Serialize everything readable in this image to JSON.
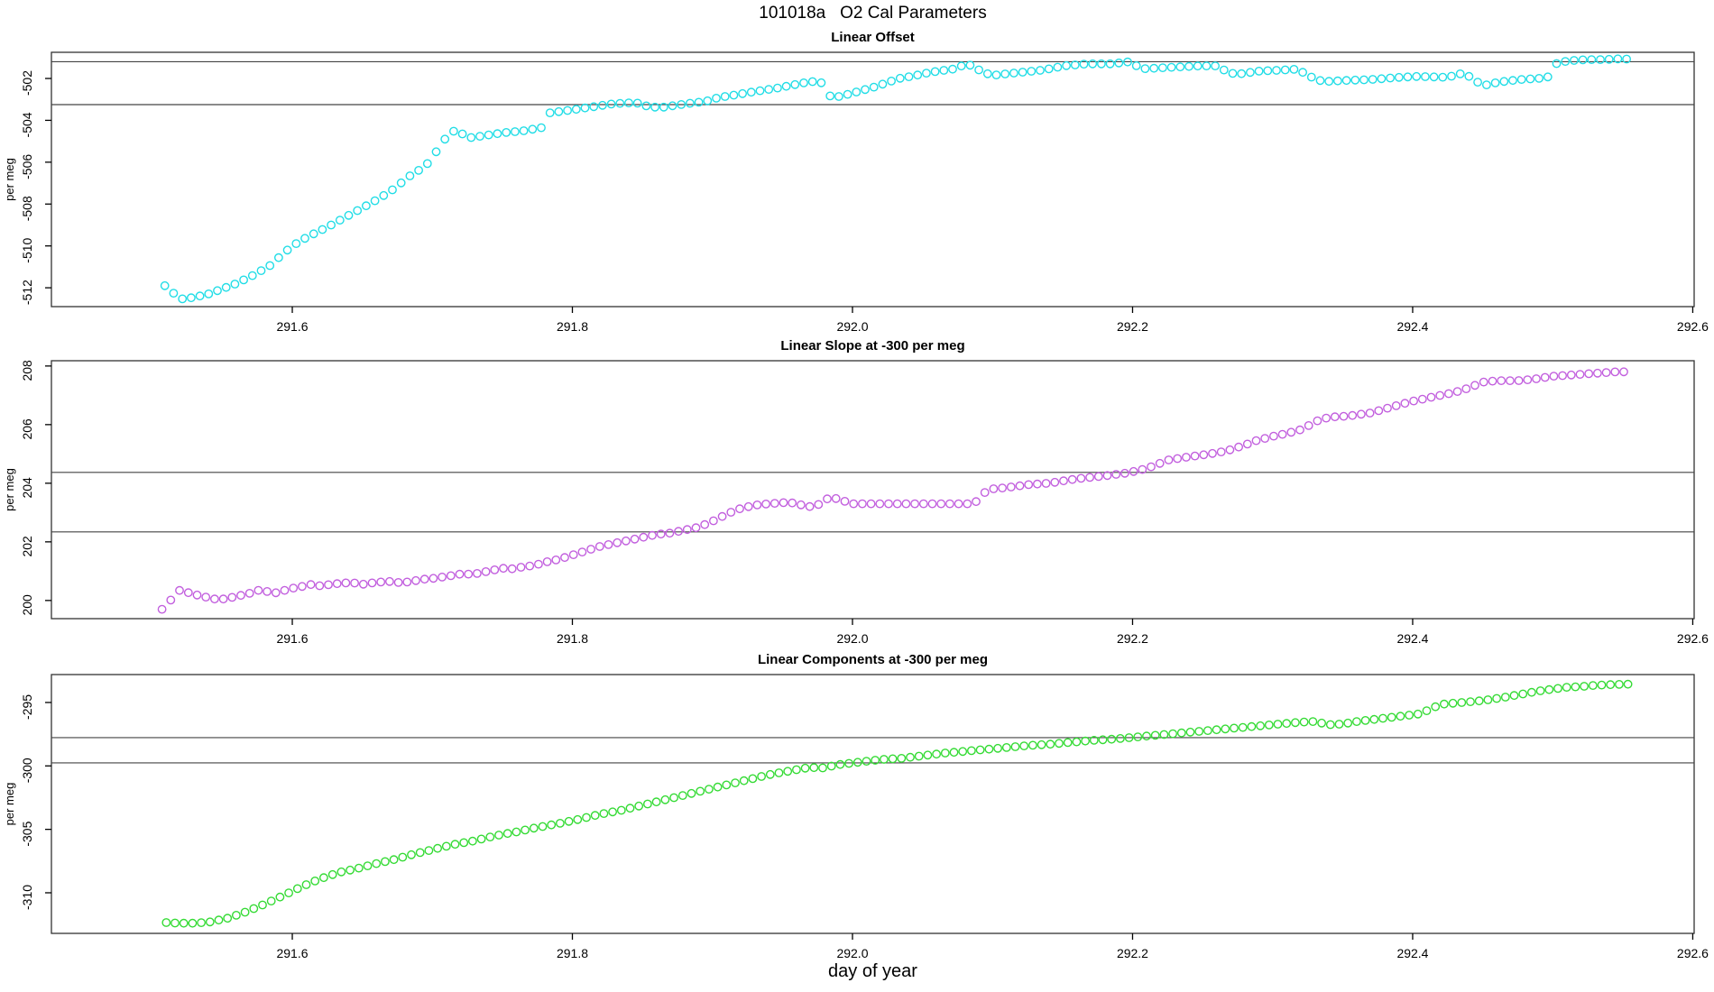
{
  "title": "101018a   O2 Cal Parameters",
  "xlabel": "day of year",
  "chart_data": [
    {
      "type": "scatter",
      "title": "Linear Offset",
      "ylabel": "per meg",
      "marker": "open-circle",
      "color": "#21DDE6",
      "xlim": [
        291.428,
        292.601
      ],
      "ylim": [
        -512.9,
        -500.75
      ],
      "x_ticks": [
        291.6,
        291.8,
        292.0,
        292.2,
        292.4,
        292.6
      ],
      "y_ticks": [
        -512,
        -510,
        -508,
        -506,
        -504,
        -502
      ],
      "ref_lines": [
        -501.2,
        -503.25
      ],
      "sample_step": 0.00625,
      "x_range": [
        291.509,
        292.5565
      ],
      "anchors": [
        [
          291.509,
          -511.9
        ],
        [
          291.516,
          -512.3
        ],
        [
          291.522,
          -512.55
        ],
        [
          291.53,
          -512.45
        ],
        [
          291.54,
          -512.3
        ],
        [
          291.55,
          -512.05
        ],
        [
          291.56,
          -511.8
        ],
        [
          291.572,
          -511.4
        ],
        [
          291.585,
          -510.9
        ],
        [
          291.592,
          -510.45
        ],
        [
          291.6,
          -510.0
        ],
        [
          291.61,
          -509.6
        ],
        [
          291.625,
          -509.1
        ],
        [
          291.64,
          -508.55
        ],
        [
          291.655,
          -508.0
        ],
        [
          291.67,
          -507.4
        ],
        [
          291.685,
          -506.6
        ],
        [
          291.695,
          -506.2
        ],
        [
          291.705,
          -505.3
        ],
        [
          291.712,
          -504.6
        ],
        [
          291.718,
          -504.45
        ],
        [
          291.725,
          -504.85
        ],
        [
          291.735,
          -504.75
        ],
        [
          291.75,
          -504.6
        ],
        [
          291.765,
          -504.5
        ],
        [
          291.778,
          -504.35
        ],
        [
          291.783,
          -503.65
        ],
        [
          291.8,
          -503.5
        ],
        [
          291.815,
          -503.35
        ],
        [
          291.83,
          -503.2
        ],
        [
          291.845,
          -503.15
        ],
        [
          291.852,
          -503.3
        ],
        [
          291.862,
          -503.4
        ],
        [
          291.872,
          -503.3
        ],
        [
          291.882,
          -503.2
        ],
        [
          291.895,
          -503.1
        ],
        [
          291.905,
          -502.9
        ],
        [
          291.915,
          -502.8
        ],
        [
          291.928,
          -502.65
        ],
        [
          291.947,
          -502.45
        ],
        [
          291.966,
          -502.2
        ],
        [
          291.977,
          -502.1
        ],
        [
          291.982,
          -502.8
        ],
        [
          291.988,
          -502.9
        ],
        [
          291.997,
          -502.75
        ],
        [
          292.016,
          -502.4
        ],
        [
          292.033,
          -502.0
        ],
        [
          292.042,
          -501.9
        ],
        [
          292.056,
          -501.7
        ],
        [
          292.072,
          -501.55
        ],
        [
          292.082,
          -501.3
        ],
        [
          292.088,
          -501.5
        ],
        [
          292.093,
          -501.7
        ],
        [
          292.1,
          -501.85
        ],
        [
          292.114,
          -501.75
        ],
        [
          292.136,
          -501.6
        ],
        [
          292.151,
          -501.4
        ],
        [
          292.168,
          -501.3
        ],
        [
          292.185,
          -501.3
        ],
        [
          292.198,
          -501.2
        ],
        [
          292.203,
          -501.4
        ],
        [
          292.21,
          -501.55
        ],
        [
          292.217,
          -501.5
        ],
        [
          292.233,
          -501.45
        ],
        [
          292.248,
          -501.4
        ],
        [
          292.262,
          -501.4
        ],
        [
          292.267,
          -501.7
        ],
        [
          292.275,
          -501.8
        ],
        [
          292.29,
          -501.65
        ],
        [
          292.306,
          -501.6
        ],
        [
          292.319,
          -501.55
        ],
        [
          292.323,
          -501.8
        ],
        [
          292.33,
          -502.0
        ],
        [
          292.336,
          -502.15
        ],
        [
          292.351,
          -502.1
        ],
        [
          292.37,
          -502.05
        ],
        [
          292.39,
          -501.95
        ],
        [
          292.404,
          -501.9
        ],
        [
          292.426,
          -501.95
        ],
        [
          292.432,
          -501.75
        ],
        [
          292.439,
          -501.85
        ],
        [
          292.445,
          -502.1
        ],
        [
          292.45,
          -502.35
        ],
        [
          292.456,
          -502.25
        ],
        [
          292.464,
          -502.15
        ],
        [
          292.477,
          -502.05
        ],
        [
          292.49,
          -502.0
        ],
        [
          292.499,
          -501.9
        ],
        [
          292.503,
          -501.25
        ],
        [
          292.512,
          -501.15
        ],
        [
          292.524,
          -501.1
        ],
        [
          292.537,
          -501.1
        ],
        [
          292.55,
          -501.05
        ],
        [
          292.5565,
          -501.1
        ]
      ]
    },
    {
      "type": "scatter",
      "title": "Linear Slope at -300 per meg",
      "ylabel": "per meg",
      "marker": "open-circle",
      "color": "#C25FDE",
      "xlim": [
        291.428,
        292.601
      ],
      "ylim": [
        199.38,
        208.18
      ],
      "x_ticks": [
        291.6,
        291.8,
        292.0,
        292.2,
        292.4,
        292.6
      ],
      "y_ticks": [
        200,
        202,
        204,
        206,
        208
      ],
      "ref_lines": [
        204.37,
        202.34
      ],
      "sample_step": 0.00625,
      "x_range": [
        291.507,
        292.5565
      ],
      "anchors": [
        [
          291.507,
          199.7
        ],
        [
          291.513,
          200.0
        ],
        [
          291.519,
          200.35
        ],
        [
          291.527,
          200.25
        ],
        [
          291.535,
          200.15
        ],
        [
          291.544,
          200.05
        ],
        [
          291.552,
          200.05
        ],
        [
          291.561,
          200.15
        ],
        [
          291.57,
          200.25
        ],
        [
          291.576,
          200.35
        ],
        [
          291.583,
          200.3
        ],
        [
          291.59,
          200.25
        ],
        [
          291.597,
          200.4
        ],
        [
          291.605,
          200.45
        ],
        [
          291.612,
          200.55
        ],
        [
          291.62,
          200.5
        ],
        [
          291.628,
          200.55
        ],
        [
          291.636,
          200.6
        ],
        [
          291.644,
          200.6
        ],
        [
          291.65,
          200.55
        ],
        [
          291.66,
          200.62
        ],
        [
          291.67,
          200.65
        ],
        [
          291.678,
          200.6
        ],
        [
          291.685,
          200.65
        ],
        [
          291.693,
          200.72
        ],
        [
          291.7,
          200.75
        ],
        [
          291.71,
          200.82
        ],
        [
          291.72,
          200.9
        ],
        [
          291.73,
          200.9
        ],
        [
          291.74,
          201.0
        ],
        [
          291.75,
          201.1
        ],
        [
          291.758,
          201.08
        ],
        [
          291.765,
          201.15
        ],
        [
          291.773,
          201.2
        ],
        [
          291.78,
          201.3
        ],
        [
          291.79,
          201.4
        ],
        [
          291.8,
          201.55
        ],
        [
          291.81,
          201.7
        ],
        [
          291.82,
          201.85
        ],
        [
          291.83,
          201.95
        ],
        [
          291.84,
          202.05
        ],
        [
          291.85,
          202.15
        ],
        [
          291.86,
          202.25
        ],
        [
          291.87,
          202.3
        ],
        [
          291.88,
          202.4
        ],
        [
          291.89,
          202.5
        ],
        [
          291.9,
          202.7
        ],
        [
          291.917,
          203.1
        ],
        [
          291.93,
          203.25
        ],
        [
          291.94,
          203.3
        ],
        [
          291.955,
          203.35
        ],
        [
          291.969,
          203.2
        ],
        [
          291.978,
          203.3
        ],
        [
          291.984,
          203.55
        ],
        [
          291.99,
          203.45
        ],
        [
          292.0,
          203.3
        ],
        [
          292.02,
          203.3
        ],
        [
          292.042,
          203.3
        ],
        [
          292.06,
          203.3
        ],
        [
          292.087,
          203.3
        ],
        [
          292.092,
          203.6
        ],
        [
          292.098,
          203.8
        ],
        [
          292.11,
          203.85
        ],
        [
          292.125,
          203.95
        ],
        [
          292.14,
          204.0
        ],
        [
          292.16,
          204.15
        ],
        [
          292.18,
          204.25
        ],
        [
          292.196,
          204.35
        ],
        [
          292.21,
          204.5
        ],
        [
          292.226,
          204.8
        ],
        [
          292.24,
          204.9
        ],
        [
          292.255,
          205.0
        ],
        [
          292.267,
          205.1
        ],
        [
          292.28,
          205.3
        ],
        [
          292.288,
          205.45
        ],
        [
          292.3,
          205.6
        ],
        [
          292.31,
          205.7
        ],
        [
          292.322,
          205.85
        ],
        [
          292.33,
          206.1
        ],
        [
          292.34,
          206.25
        ],
        [
          292.355,
          206.3
        ],
        [
          292.37,
          206.4
        ],
        [
          292.385,
          206.6
        ],
        [
          292.4,
          206.8
        ],
        [
          292.415,
          206.95
        ],
        [
          292.43,
          207.1
        ],
        [
          292.44,
          207.25
        ],
        [
          292.45,
          207.45
        ],
        [
          292.46,
          207.5
        ],
        [
          292.475,
          207.5
        ],
        [
          292.486,
          207.55
        ],
        [
          292.5,
          207.65
        ],
        [
          292.515,
          207.7
        ],
        [
          292.53,
          207.75
        ],
        [
          292.545,
          207.8
        ],
        [
          292.5565,
          207.8
        ]
      ]
    },
    {
      "type": "scatter",
      "title": "Linear Components at -300 per meg",
      "ylabel": "per meg",
      "marker": "open-circle",
      "color": "#35DB35",
      "xlim": [
        291.428,
        292.601
      ],
      "ylim": [
        -313.2,
        -292.8
      ],
      "x_ticks": [
        291.6,
        291.8,
        292.0,
        292.2,
        292.4,
        292.6
      ],
      "y_ticks": [
        -310,
        -305,
        -300,
        -295
      ],
      "ref_lines": [
        -297.77,
        -299.76
      ],
      "sample_step": 0.00625,
      "x_range": [
        291.51,
        292.5565
      ],
      "anchors": [
        [
          291.51,
          -312.35
        ],
        [
          291.52,
          -312.4
        ],
        [
          291.53,
          -312.4
        ],
        [
          291.541,
          -312.3
        ],
        [
          291.554,
          -312.0
        ],
        [
          291.567,
          -311.5
        ],
        [
          291.58,
          -310.9
        ],
        [
          291.594,
          -310.2
        ],
        [
          291.607,
          -309.5
        ],
        [
          291.62,
          -308.9
        ],
        [
          291.633,
          -308.4
        ],
        [
          291.646,
          -308.1
        ],
        [
          291.66,
          -307.7
        ],
        [
          291.672,
          -307.4
        ],
        [
          291.685,
          -307.0
        ],
        [
          291.7,
          -306.6
        ],
        [
          291.715,
          -306.2
        ],
        [
          291.73,
          -305.9
        ],
        [
          291.745,
          -305.5
        ],
        [
          291.76,
          -305.2
        ],
        [
          291.775,
          -304.85
        ],
        [
          291.79,
          -304.55
        ],
        [
          291.805,
          -304.2
        ],
        [
          291.82,
          -303.8
        ],
        [
          291.835,
          -303.5
        ],
        [
          291.85,
          -303.1
        ],
        [
          291.865,
          -302.7
        ],
        [
          291.88,
          -302.3
        ],
        [
          291.895,
          -301.9
        ],
        [
          291.91,
          -301.5
        ],
        [
          291.925,
          -301.1
        ],
        [
          291.94,
          -300.7
        ],
        [
          291.955,
          -300.4
        ],
        [
          291.97,
          -300.1
        ],
        [
          291.977,
          -300.2
        ],
        [
          291.99,
          -299.9
        ],
        [
          292.005,
          -299.7
        ],
        [
          292.02,
          -299.5
        ],
        [
          292.035,
          -299.4
        ],
        [
          292.05,
          -299.2
        ],
        [
          292.065,
          -299.0
        ],
        [
          292.08,
          -298.85
        ],
        [
          292.095,
          -298.7
        ],
        [
          292.11,
          -298.55
        ],
        [
          292.125,
          -298.4
        ],
        [
          292.14,
          -298.3
        ],
        [
          292.155,
          -298.15
        ],
        [
          292.17,
          -298.0
        ],
        [
          292.185,
          -297.9
        ],
        [
          292.2,
          -297.75
        ],
        [
          292.215,
          -297.6
        ],
        [
          292.23,
          -297.45
        ],
        [
          292.245,
          -297.3
        ],
        [
          292.26,
          -297.15
        ],
        [
          292.275,
          -297.0
        ],
        [
          292.29,
          -296.85
        ],
        [
          292.305,
          -296.7
        ],
        [
          292.32,
          -296.55
        ],
        [
          292.33,
          -296.5
        ],
        [
          292.34,
          -296.75
        ],
        [
          292.35,
          -296.7
        ],
        [
          292.36,
          -296.5
        ],
        [
          292.375,
          -296.3
        ],
        [
          292.39,
          -296.1
        ],
        [
          292.405,
          -295.9
        ],
        [
          292.42,
          -295.15
        ],
        [
          292.435,
          -295.0
        ],
        [
          292.45,
          -294.85
        ],
        [
          292.465,
          -294.6
        ],
        [
          292.48,
          -294.3
        ],
        [
          292.49,
          -294.1
        ],
        [
          292.5,
          -293.95
        ],
        [
          292.51,
          -293.8
        ],
        [
          292.52,
          -293.75
        ],
        [
          292.53,
          -293.65
        ],
        [
          292.54,
          -293.6
        ],
        [
          292.5565,
          -293.55
        ]
      ]
    }
  ],
  "style": {
    "box_color": "#333333",
    "ref_line_color": "#444444",
    "tick_color": "#000000"
  }
}
